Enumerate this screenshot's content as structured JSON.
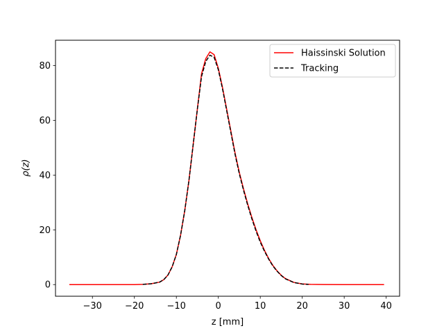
{
  "chart_data": {
    "type": "line",
    "title": "",
    "xlabel": "z [mm]",
    "ylabel": "ρ(z)",
    "xlim": [
      -38.8,
      43.2
    ],
    "ylim": [
      -4.25,
      89.25
    ],
    "xticks": [
      -30,
      -20,
      -10,
      0,
      10,
      20,
      30,
      40
    ],
    "xtick_labels": [
      "−30",
      "−20",
      "−10",
      "0",
      "10",
      "20",
      "30",
      "40"
    ],
    "yticks": [
      0,
      20,
      40,
      60,
      80
    ],
    "ytick_labels": [
      "0",
      "20",
      "40",
      "60",
      "80"
    ],
    "grid": false,
    "legend_position": "top-right",
    "series": [
      {
        "name": "Haissinski Solution",
        "color": "#ff0000",
        "style": "solid",
        "x": [
          -35.5,
          -30,
          -25,
          -20,
          -18,
          -16,
          -14,
          -13,
          -12,
          -11,
          -10,
          -9,
          -8,
          -7,
          -6,
          -5,
          -4,
          -3,
          -2,
          -1,
          0,
          1,
          2,
          3,
          4,
          5,
          6,
          7,
          8,
          9,
          10,
          11,
          12,
          13,
          14,
          15,
          16,
          18,
          20,
          22,
          25,
          30,
          35,
          39.5
        ],
        "y": [
          0,
          0,
          0,
          0,
          0.1,
          0.3,
          0.9,
          1.8,
          3.5,
          6.5,
          11,
          18,
          27,
          38,
          51,
          64,
          77,
          82.5,
          85,
          84,
          79,
          72,
          64,
          56,
          48,
          41,
          35,
          29.5,
          24.5,
          20,
          16,
          12.5,
          9.5,
          7,
          5,
          3.4,
          2.2,
          0.8,
          0.25,
          0.08,
          0.02,
          0,
          0,
          0
        ]
      },
      {
        "name": "Tracking",
        "color": "#000000",
        "style": "dashed",
        "x": [
          -18,
          -16,
          -14,
          -13,
          -12,
          -11,
          -10,
          -9,
          -8,
          -7,
          -6,
          -5,
          -4,
          -3,
          -2,
          -1,
          0,
          1,
          2,
          3,
          4,
          5,
          6,
          7,
          8,
          9,
          10,
          11,
          12,
          13,
          14,
          15,
          16,
          18,
          20,
          21.5
        ],
        "y": [
          0.1,
          0.3,
          0.9,
          1.8,
          3.5,
          6.5,
          11,
          18,
          27,
          38,
          51,
          64,
          76,
          81.5,
          83.8,
          83,
          78.5,
          71.5,
          63.5,
          55.5,
          47.5,
          40.5,
          34.5,
          29,
          24,
          19.5,
          15.5,
          12.2,
          9.3,
          6.8,
          4.9,
          3.3,
          2.1,
          0.75,
          0.2,
          0.05
        ]
      }
    ]
  }
}
